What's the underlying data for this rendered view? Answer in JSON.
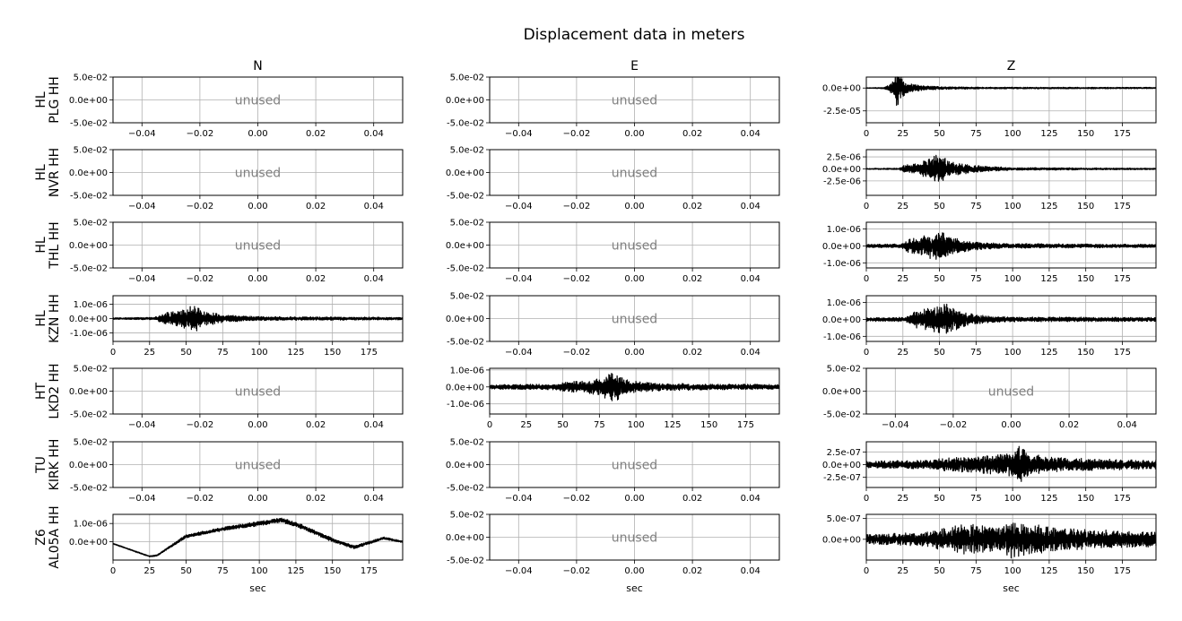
{
  "figure": {
    "title": "Displacement data in meters",
    "columns": [
      "N",
      "E",
      "Z"
    ],
    "stations": [
      "HL\nPLG HH",
      "HL\nNVR HH",
      "HL\nTHL HH",
      "HL\nKZN HH",
      "HT\nLKD2 HH",
      "TU\nKIRK HH",
      "Z6\nAL05A HH"
    ],
    "xlabel": "sec",
    "unused_label": "unused",
    "colors": {
      "trace": "#000000",
      "grid": "#b0b0b0",
      "unused_text": "#808080"
    }
  },
  "chart_data": [
    {
      "type": "line",
      "row": 0,
      "col": 0,
      "used": false,
      "xlim": [
        -0.05,
        0.05
      ],
      "xticks": [
        -0.04,
        -0.02,
        0.0,
        0.02,
        0.04
      ],
      "xtick_labels": [
        "−0.04",
        "−0.02",
        "0.00",
        "0.02",
        "0.04"
      ],
      "ylim": [
        -0.05,
        0.05
      ],
      "yticks": [
        0.05,
        0.0,
        -0.05
      ],
      "ytick_labels": [
        "5.0e-02",
        "0.0e+00",
        "-5.0e-02"
      ],
      "grid": true
    },
    {
      "type": "line",
      "row": 0,
      "col": 1,
      "used": false,
      "xlim": [
        -0.05,
        0.05
      ],
      "xticks": [
        -0.04,
        -0.02,
        0.0,
        0.02,
        0.04
      ],
      "xtick_labels": [
        "−0.04",
        "−0.02",
        "0.00",
        "0.02",
        "0.04"
      ],
      "ylim": [
        -0.05,
        0.05
      ],
      "yticks": [
        0.05,
        0.0,
        -0.05
      ],
      "ytick_labels": [
        "5.0e-02",
        "0.0e+00",
        "-5.0e-02"
      ],
      "grid": true
    },
    {
      "type": "line",
      "row": 0,
      "col": 2,
      "used": true,
      "xlim": [
        0,
        198
      ],
      "xticks": [
        0,
        25,
        50,
        75,
        100,
        125,
        150,
        175
      ],
      "xtick_labels": [
        "0",
        "25",
        "50",
        "75",
        "100",
        "125",
        "150",
        "175"
      ],
      "ylim": [
        -3.8e-05,
        1.2e-05
      ],
      "yticks": [
        0.0,
        -2.5e-05
      ],
      "ytick_labels": [
        "0.0e+00",
        "-2.5e-05"
      ],
      "grid": true,
      "waveform": {
        "duration": 198,
        "amplitude": 1e-06,
        "offset": 0,
        "envelope": [
          [
            0,
            0.3
          ],
          [
            12,
            0.8
          ],
          [
            17,
            6
          ],
          [
            19,
            12
          ],
          [
            21,
            30
          ],
          [
            23,
            14
          ],
          [
            28,
            6
          ],
          [
            40,
            2.5
          ],
          [
            55,
            1.5
          ],
          [
            80,
            1
          ],
          [
            198,
            0.8
          ]
        ]
      }
    },
    {
      "type": "line",
      "row": 1,
      "col": 0,
      "used": false,
      "xlim": [
        -0.05,
        0.05
      ],
      "xticks": [
        -0.04,
        -0.02,
        0.0,
        0.02,
        0.04
      ],
      "xtick_labels": [
        "−0.04",
        "−0.02",
        "0.00",
        "0.02",
        "0.04"
      ],
      "ylim": [
        -0.05,
        0.05
      ],
      "yticks": [
        0.05,
        0.0,
        -0.05
      ],
      "ytick_labels": [
        "5.0e-02",
        "0.0e+00",
        "-5.0e-02"
      ],
      "grid": true
    },
    {
      "type": "line",
      "row": 1,
      "col": 1,
      "used": false,
      "xlim": [
        -0.05,
        0.05
      ],
      "xticks": [
        -0.04,
        -0.02,
        0.0,
        0.02,
        0.04
      ],
      "xtick_labels": [
        "−0.04",
        "−0.02",
        "0.00",
        "0.02",
        "0.04"
      ],
      "ylim": [
        -0.05,
        0.05
      ],
      "yticks": [
        0.05,
        0.0,
        -0.05
      ],
      "ytick_labels": [
        "5.0e-02",
        "0.0e+00",
        "-5.0e-02"
      ],
      "grid": true
    },
    {
      "type": "line",
      "row": 1,
      "col": 2,
      "used": true,
      "xlim": [
        0,
        198
      ],
      "xticks": [
        0,
        25,
        50,
        75,
        100,
        125,
        150,
        175
      ],
      "xtick_labels": [
        "0",
        "25",
        "50",
        "75",
        "100",
        "125",
        "150",
        "175"
      ],
      "ylim": [
        -5.5e-06,
        4e-06
      ],
      "yticks": [
        2.5e-06,
        0.0,
        -2.5e-06
      ],
      "ytick_labels": [
        "2.5e-06",
        "0.0e+00",
        "-2.5e-06"
      ],
      "grid": true,
      "waveform": {
        "duration": 198,
        "amplitude": 1e-06,
        "offset": 0,
        "envelope": [
          [
            0,
            0.12
          ],
          [
            22,
            0.15
          ],
          [
            25,
            0.8
          ],
          [
            35,
            1.2
          ],
          [
            45,
            2.5
          ],
          [
            48,
            4
          ],
          [
            55,
            2
          ],
          [
            65,
            1.2
          ],
          [
            80,
            0.6
          ],
          [
            100,
            0.3
          ],
          [
            198,
            0.15
          ]
        ]
      }
    },
    {
      "type": "line",
      "row": 2,
      "col": 0,
      "used": false,
      "xlim": [
        -0.05,
        0.05
      ],
      "xticks": [
        -0.04,
        -0.02,
        0.0,
        0.02,
        0.04
      ],
      "xtick_labels": [
        "−0.04",
        "−0.02",
        "0.00",
        "0.02",
        "0.04"
      ],
      "ylim": [
        -0.05,
        0.05
      ],
      "yticks": [
        0.05,
        0.0,
        -0.05
      ],
      "ytick_labels": [
        "5.0e-02",
        "0.0e+00",
        "-5.0e-02"
      ],
      "grid": true
    },
    {
      "type": "line",
      "row": 2,
      "col": 1,
      "used": false,
      "xlim": [
        -0.05,
        0.05
      ],
      "xticks": [
        -0.04,
        -0.02,
        0.0,
        0.02,
        0.04
      ],
      "xtick_labels": [
        "−0.04",
        "−0.02",
        "0.00",
        "0.02",
        "0.04"
      ],
      "ylim": [
        -0.05,
        0.05
      ],
      "yticks": [
        0.05,
        0.0,
        -0.05
      ],
      "ytick_labels": [
        "5.0e-02",
        "0.0e+00",
        "-5.0e-02"
      ],
      "grid": true
    },
    {
      "type": "line",
      "row": 2,
      "col": 2,
      "used": true,
      "xlim": [
        0,
        198
      ],
      "xticks": [
        0,
        25,
        50,
        75,
        100,
        125,
        150,
        175
      ],
      "xtick_labels": [
        "0",
        "25",
        "50",
        "75",
        "100",
        "125",
        "150",
        "175"
      ],
      "ylim": [
        -1.3e-06,
        1.4e-06
      ],
      "yticks": [
        1e-06,
        0.0,
        -1e-06
      ],
      "ytick_labels": [
        "1.0e-06",
        "0.0e+00",
        "-1.0e-06"
      ],
      "grid": true,
      "waveform": {
        "duration": 198,
        "amplitude": 1e-07,
        "offset": 0,
        "envelope": [
          [
            0,
            1
          ],
          [
            24,
            1.3
          ],
          [
            28,
            4
          ],
          [
            40,
            7
          ],
          [
            50,
            10
          ],
          [
            60,
            5
          ],
          [
            75,
            2.5
          ],
          [
            100,
            1.5
          ],
          [
            198,
            1
          ]
        ]
      }
    },
    {
      "type": "line",
      "row": 3,
      "col": 0,
      "used": true,
      "xlim": [
        0,
        198
      ],
      "xticks": [
        0,
        25,
        50,
        75,
        100,
        125,
        150,
        175
      ],
      "xtick_labels": [
        "0",
        "25",
        "50",
        "75",
        "100",
        "125",
        "150",
        "175"
      ],
      "ylim": [
        -1.6e-06,
        1.6e-06
      ],
      "yticks": [
        1e-06,
        0.0,
        -1e-06
      ],
      "ytick_labels": [
        "1.0e-06",
        "0.0e+00",
        "-1.0e-06"
      ],
      "grid": true,
      "waveform": {
        "duration": 198,
        "amplitude": 1e-07,
        "offset": 0,
        "envelope": [
          [
            0,
            0.6
          ],
          [
            28,
            0.9
          ],
          [
            35,
            4
          ],
          [
            50,
            8
          ],
          [
            55,
            11
          ],
          [
            62,
            6
          ],
          [
            75,
            3
          ],
          [
            100,
            1.5
          ],
          [
            198,
            1
          ]
        ]
      }
    },
    {
      "type": "line",
      "row": 3,
      "col": 1,
      "used": false,
      "xlim": [
        -0.05,
        0.05
      ],
      "xticks": [
        -0.04,
        -0.02,
        0.0,
        0.02,
        0.04
      ],
      "xtick_labels": [
        "−0.04",
        "−0.02",
        "0.00",
        "0.02",
        "0.04"
      ],
      "ylim": [
        -0.05,
        0.05
      ],
      "yticks": [
        0.05,
        0.0,
        -0.05
      ],
      "ytick_labels": [
        "5.0e-02",
        "0.0e+00",
        "-5.0e-02"
      ],
      "grid": true
    },
    {
      "type": "line",
      "row": 3,
      "col": 2,
      "used": true,
      "xlim": [
        0,
        198
      ],
      "xticks": [
        0,
        25,
        50,
        75,
        100,
        125,
        150,
        175
      ],
      "xtick_labels": [
        "0",
        "25",
        "50",
        "75",
        "100",
        "125",
        "150",
        "175"
      ],
      "ylim": [
        -1.3e-06,
        1.4e-06
      ],
      "yticks": [
        1e-06,
        0.0,
        -1e-06
      ],
      "ytick_labels": [
        "1.0e-06",
        "0.0e+00",
        "-1.0e-06"
      ],
      "grid": true,
      "waveform": {
        "duration": 198,
        "amplitude": 1e-07,
        "offset": 0,
        "envelope": [
          [
            0,
            1.2
          ],
          [
            27,
            1.4
          ],
          [
            32,
            5
          ],
          [
            45,
            8
          ],
          [
            55,
            10
          ],
          [
            65,
            5
          ],
          [
            80,
            2.5
          ],
          [
            100,
            1.5
          ],
          [
            198,
            1.3
          ]
        ]
      }
    },
    {
      "type": "line",
      "row": 4,
      "col": 0,
      "used": false,
      "xlim": [
        -0.05,
        0.05
      ],
      "xticks": [
        -0.04,
        -0.02,
        0.0,
        0.02,
        0.04
      ],
      "xtick_labels": [
        "−0.04",
        "−0.02",
        "0.00",
        "0.02",
        "0.04"
      ],
      "ylim": [
        -0.05,
        0.05
      ],
      "yticks": [
        0.05,
        0.0,
        -0.05
      ],
      "ytick_labels": [
        "5.0e-02",
        "0.0e+00",
        "-5.0e-02"
      ],
      "grid": true
    },
    {
      "type": "line",
      "row": 4,
      "col": 1,
      "used": true,
      "xlim": [
        0,
        198
      ],
      "xticks": [
        0,
        25,
        50,
        75,
        100,
        125,
        150,
        175
      ],
      "xtick_labels": [
        "0",
        "25",
        "50",
        "75",
        "100",
        "125",
        "150",
        "175"
      ],
      "ylim": [
        -1.6e-06,
        1.1e-06
      ],
      "yticks": [
        1e-06,
        0.0,
        -1e-06
      ],
      "ytick_labels": [
        "1.0e-06",
        "0.0e+00",
        "-1.0e-06"
      ],
      "grid": true,
      "waveform": {
        "duration": 198,
        "amplitude": 1e-07,
        "offset": 0,
        "envelope": [
          [
            0,
            1.5
          ],
          [
            45,
            1.8
          ],
          [
            55,
            3.5
          ],
          [
            75,
            5
          ],
          [
            85,
            10
          ],
          [
            92,
            5
          ],
          [
            105,
            3
          ],
          [
            130,
            2.2
          ],
          [
            198,
            1.5
          ]
        ]
      }
    },
    {
      "type": "line",
      "row": 4,
      "col": 2,
      "used": false,
      "xlim": [
        -0.05,
        0.05
      ],
      "xticks": [
        -0.04,
        -0.02,
        0.0,
        0.02,
        0.04
      ],
      "xtick_labels": [
        "−0.04",
        "−0.02",
        "0.00",
        "0.02",
        "0.04"
      ],
      "ylim": [
        -0.05,
        0.05
      ],
      "yticks": [
        0.05,
        0.0,
        -0.05
      ],
      "ytick_labels": [
        "5.0e-02",
        "0.0e+00",
        "-5.0e-02"
      ],
      "grid": true
    },
    {
      "type": "line",
      "row": 5,
      "col": 0,
      "used": false,
      "xlim": [
        -0.05,
        0.05
      ],
      "xticks": [
        -0.04,
        -0.02,
        0.0,
        0.02,
        0.04
      ],
      "xtick_labels": [
        "−0.04",
        "−0.02",
        "0.00",
        "0.02",
        "0.04"
      ],
      "ylim": [
        -0.05,
        0.05
      ],
      "yticks": [
        0.05,
        0.0,
        -0.05
      ],
      "ytick_labels": [
        "5.0e-02",
        "0.0e+00",
        "-5.0e-02"
      ],
      "grid": true
    },
    {
      "type": "line",
      "row": 5,
      "col": 1,
      "used": false,
      "xlim": [
        -0.05,
        0.05
      ],
      "xticks": [
        -0.04,
        -0.02,
        0.0,
        0.02,
        0.04
      ],
      "xtick_labels": [
        "−0.04",
        "−0.02",
        "0.00",
        "0.02",
        "0.04"
      ],
      "ylim": [
        -0.05,
        0.05
      ],
      "yticks": [
        0.05,
        0.0,
        -0.05
      ],
      "ytick_labels": [
        "5.0e-02",
        "0.0e+00",
        "-5.0e-02"
      ],
      "grid": true
    },
    {
      "type": "line",
      "row": 5,
      "col": 2,
      "used": true,
      "xlim": [
        0,
        198
      ],
      "xticks": [
        0,
        25,
        50,
        75,
        100,
        125,
        150,
        175
      ],
      "xtick_labels": [
        "0",
        "25",
        "50",
        "75",
        "100",
        "125",
        "150",
        "175"
      ],
      "ylim": [
        -4.5e-07,
        4.5e-07
      ],
      "yticks": [
        2.5e-07,
        0.0,
        -2.5e-07
      ],
      "ytick_labels": [
        "2.5e-07",
        "0.0e+00",
        "-2.5e-07"
      ],
      "grid": true,
      "waveform": {
        "duration": 198,
        "amplitude": 1e-08,
        "offset": 0,
        "envelope": [
          [
            0,
            8
          ],
          [
            45,
            10
          ],
          [
            55,
            15
          ],
          [
            75,
            18
          ],
          [
            100,
            25
          ],
          [
            105,
            40
          ],
          [
            112,
            22
          ],
          [
            130,
            15
          ],
          [
            160,
            12
          ],
          [
            198,
            9
          ]
        ]
      }
    },
    {
      "type": "line",
      "row": 6,
      "col": 0,
      "used": true,
      "xlim": [
        0,
        198
      ],
      "xticks": [
        0,
        25,
        50,
        75,
        100,
        125,
        150,
        175
      ],
      "xtick_labels": [
        "0",
        "25",
        "50",
        "75",
        "100",
        "125",
        "150",
        "175"
      ],
      "ylim": [
        -1e-06,
        1.5e-06
      ],
      "yticks": [
        1e-06,
        0.0
      ],
      "ytick_labels": [
        "1.0e-06",
        "0.0e+00"
      ],
      "grid": true,
      "waveform": {
        "duration": 198,
        "amplitude": 1e-07,
        "offset_points": [
          [
            0,
            -0.1
          ],
          [
            25,
            -0.8
          ],
          [
            30,
            -0.75
          ],
          [
            50,
            0.3
          ],
          [
            75,
            0.7
          ],
          [
            100,
            1.0
          ],
          [
            115,
            1.2
          ],
          [
            130,
            0.8
          ],
          [
            150,
            0.1
          ],
          [
            165,
            -0.3
          ],
          [
            185,
            0.2
          ],
          [
            198,
            0.0
          ]
        ],
        "envelope": [
          [
            0,
            0.3
          ],
          [
            30,
            0.4
          ],
          [
            45,
            0.9
          ],
          [
            80,
            1.2
          ],
          [
            115,
            1.5
          ],
          [
            150,
            1.2
          ],
          [
            198,
            0.5
          ]
        ]
      }
    },
    {
      "type": "line",
      "row": 6,
      "col": 1,
      "used": false,
      "xlim": [
        -0.05,
        0.05
      ],
      "xticks": [
        -0.04,
        -0.02,
        0.0,
        0.02,
        0.04
      ],
      "xtick_labels": [
        "−0.04",
        "−0.02",
        "0.00",
        "0.02",
        "0.04"
      ],
      "ylim": [
        -0.05,
        0.05
      ],
      "yticks": [
        0.05,
        0.0,
        -0.05
      ],
      "ytick_labels": [
        "5.0e-02",
        "0.0e+00",
        "-5.0e-02"
      ],
      "grid": true
    },
    {
      "type": "line",
      "row": 6,
      "col": 2,
      "used": true,
      "xlim": [
        0,
        198
      ],
      "xticks": [
        0,
        25,
        50,
        75,
        100,
        125,
        150,
        175
      ],
      "xtick_labels": [
        "0",
        "25",
        "50",
        "75",
        "100",
        "125",
        "150",
        "175"
      ],
      "ylim": [
        -5e-07,
        6e-07
      ],
      "yticks": [
        5e-07,
        0.0
      ],
      "ytick_labels": [
        "5.0e-07",
        "0.0e+00"
      ],
      "grid": true,
      "waveform": {
        "duration": 198,
        "amplitude": 1e-08,
        "offset": 0,
        "envelope": [
          [
            0,
            12
          ],
          [
            40,
            18
          ],
          [
            55,
            30
          ],
          [
            70,
            40
          ],
          [
            90,
            30
          ],
          [
            100,
            50
          ],
          [
            120,
            35
          ],
          [
            150,
            25
          ],
          [
            198,
            20
          ]
        ]
      }
    }
  ]
}
